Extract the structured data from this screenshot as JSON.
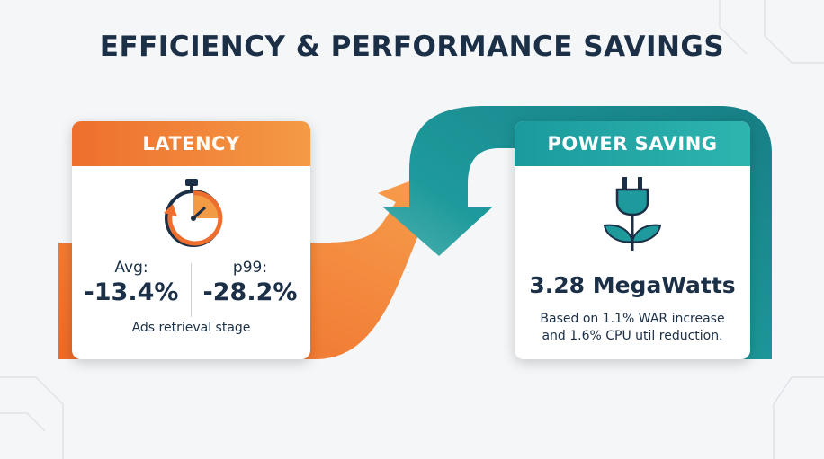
{
  "title": "EFFICIENCY & PERFORMANCE SAVINGS",
  "latency": {
    "header": "LATENCY",
    "metrics": [
      {
        "label": "Avg:",
        "value": "-13.4%"
      },
      {
        "label": "p99:",
        "value": "-28.2%"
      }
    ],
    "caption": "Ads retrieval stage"
  },
  "power": {
    "header": "POWER SAVING",
    "value": "3.28 MegaWatts",
    "caption": [
      "Based on 1.1% WAR increase",
      "and 1.6% CPU util reduction."
    ]
  }
}
